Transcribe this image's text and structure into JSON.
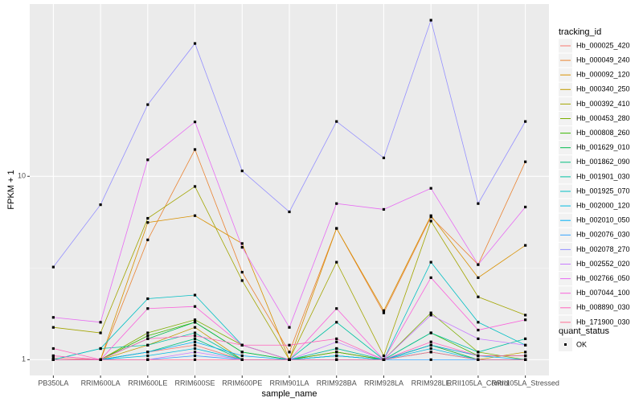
{
  "chart_data": {
    "type": "line",
    "x_label": "sample_name",
    "y_label": "FPKM + 1",
    "log_y": true,
    "grid": true,
    "legend_title": "tracking_id",
    "shape_legend_title": "quant_status",
    "shape_legend_entries": [
      "OK"
    ],
    "categories": [
      "PB350LA",
      "RRIM600LA",
      "RRIM600LE",
      "RRIM600SE",
      "RRIM600PE",
      "RRIM901LA",
      "RRIM928BA",
      "RRIM928LA",
      "RRIM928LE",
      "RRII105LA_Control",
      "RRII105LA_Stressed"
    ],
    "ylim": [
      0.82,
      87
    ],
    "yticks": [
      1,
      10
    ],
    "series": [
      {
        "name": "Hb_000025_420",
        "color": "#F8766D",
        "values": [
          1.02,
          1.0,
          1.1,
          1.2,
          1.0,
          1.0,
          1.1,
          1.0,
          1.2,
          1.05,
          1.05
        ]
      },
      {
        "name": "Hb_000049_240",
        "color": "#EA8331",
        "values": [
          1.05,
          1.0,
          4.5,
          14,
          3.0,
          1.1,
          5.2,
          1.8,
          6.0,
          3.3,
          12
        ]
      },
      {
        "name": "Hb_000092_120",
        "color": "#D89000",
        "values": [
          1.0,
          1.0,
          5.6,
          6.1,
          4.3,
          1.0,
          5.2,
          1.85,
          6.1,
          2.8,
          4.2
        ]
      },
      {
        "name": "Hb_000340_250",
        "color": "#C09B00",
        "values": [
          1.0,
          1.0,
          1.2,
          1.5,
          1.0,
          1.0,
          1.1,
          1.0,
          1.2,
          1.0,
          1.1
        ]
      },
      {
        "name": "Hb_000392_410",
        "color": "#A3A500",
        "values": [
          1.5,
          1.4,
          5.9,
          8.8,
          2.7,
          1.0,
          3.4,
          1.05,
          5.7,
          2.2,
          1.75
        ]
      },
      {
        "name": "Hb_000453_280",
        "color": "#7CAE00",
        "values": [
          1.0,
          1.0,
          1.4,
          1.65,
          1.2,
          1.0,
          1.15,
          1.0,
          1.8,
          1.1,
          1.0
        ]
      },
      {
        "name": "Hb_000808_260",
        "color": "#39B600",
        "values": [
          1.0,
          1.0,
          1.35,
          1.6,
          1.1,
          1.0,
          1.1,
          1.0,
          1.4,
          1.05,
          1.05
        ]
      },
      {
        "name": "Hb_001629_010",
        "color": "#00BB4E",
        "values": [
          1.0,
          1.0,
          1.3,
          1.6,
          1.1,
          1.0,
          1.05,
          1.0,
          1.2,
          1.0,
          1.0
        ]
      },
      {
        "name": "Hb_001862_090",
        "color": "#00BF7D",
        "values": [
          1.0,
          1.0,
          1.1,
          1.3,
          1.0,
          1.0,
          1.05,
          1.0,
          1.1,
          1.0,
          1.0
        ]
      },
      {
        "name": "Hb_001901_030",
        "color": "#00C1A3",
        "values": [
          1.0,
          1.15,
          1.2,
          1.4,
          1.0,
          1.0,
          1.6,
          1.0,
          1.4,
          1.1,
          1.3
        ]
      },
      {
        "name": "Hb_001925_070",
        "color": "#00BFC4",
        "values": [
          1.0,
          1.15,
          2.15,
          2.25,
          1.2,
          1.0,
          1.15,
          1.0,
          3.4,
          1.6,
          1.2
        ]
      },
      {
        "name": "Hb_002000_120",
        "color": "#00BAE0",
        "values": [
          1.0,
          1.0,
          1.05,
          1.15,
          1.0,
          1.0,
          1.0,
          1.0,
          1.15,
          1.0,
          1.0
        ]
      },
      {
        "name": "Hb_002010_050",
        "color": "#00B0F6",
        "values": [
          1.0,
          1.0,
          1.1,
          1.25,
          1.05,
          1.0,
          1.05,
          1.0,
          1.2,
          1.05,
          1.0
        ]
      },
      {
        "name": "Hb_002076_030",
        "color": "#35A2FF",
        "values": [
          1.0,
          1.0,
          1.0,
          1.05,
          1.0,
          1.0,
          1.0,
          1.0,
          1.0,
          1.0,
          1.0
        ]
      },
      {
        "name": "Hb_002078_270",
        "color": "#9590FF",
        "values": [
          3.2,
          7.0,
          24.6,
          53,
          10.7,
          6.4,
          19.9,
          12.6,
          71,
          7.1,
          19.9
        ]
      },
      {
        "name": "Hb_002552_020",
        "color": "#C77CFF",
        "values": [
          1.0,
          1.0,
          1.0,
          1.1,
          1.0,
          1.0,
          1.25,
          1.0,
          1.75,
          1.3,
          1.2
        ]
      },
      {
        "name": "Hb_002766_050",
        "color": "#E76BF3",
        "values": [
          1.7,
          1.6,
          12.3,
          19.8,
          4.1,
          1.5,
          7.1,
          6.6,
          8.6,
          3.3,
          6.8
        ]
      },
      {
        "name": "Hb_007044_100",
        "color": "#FA62DB",
        "values": [
          1.05,
          1.0,
          1.9,
          1.95,
          1.2,
          1.0,
          1.9,
          1.0,
          2.8,
          1.45,
          1.65
        ]
      },
      {
        "name": "Hb_008890_030",
        "color": "#FF62BC",
        "values": [
          1.15,
          1.0,
          1.3,
          1.35,
          1.2,
          1.2,
          1.3,
          1.0,
          1.25,
          1.05,
          1.05
        ]
      },
      {
        "name": "Hb_171900_030",
        "color": "#FF6C91",
        "values": [
          1.0,
          1.0,
          1.0,
          1.0,
          1.0,
          1.0,
          1.0,
          1.0,
          1.1,
          1.0,
          1.0
        ]
      }
    ]
  }
}
